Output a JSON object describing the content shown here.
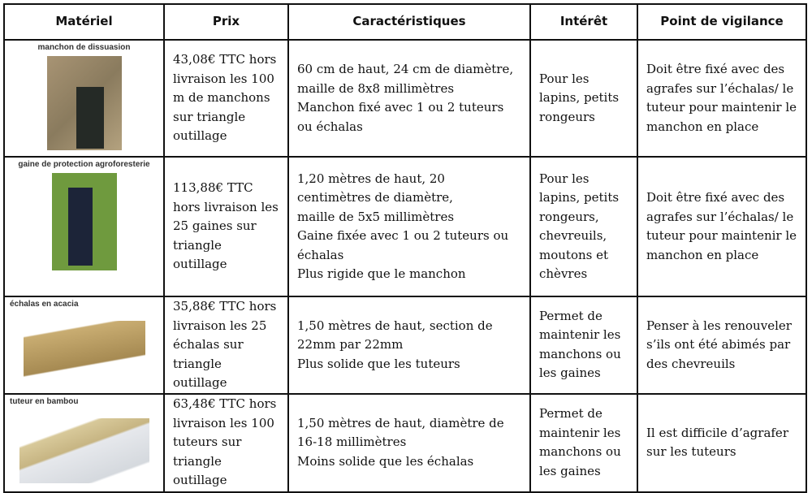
{
  "headers": [
    "Matériel",
    "Prix",
    "Caractéristiques",
    "Intérêt",
    "Point de vigilance"
  ],
  "rows": [
    {
      "materiel": "manchon de dissuasion",
      "prix": "43,08€ TTC hors livraison les 100 m de manchons sur triangle outillage",
      "caracteristiques": [
        "60 cm de haut, 24 cm de diamètre, maille de 8x8 millimètres",
        "Manchon fixé avec 1 ou 2 tuteurs ou échalas"
      ],
      "interet": "Pour les lapins, petits rongeurs",
      "vigilance": "Doit être fixé avec des agrafes sur l’échalas/ le tuteur pour maintenir le manchon en place"
    },
    {
      "materiel": "gaine de protection agroforesterie",
      "prix": "113,88€ TTC hors livraison les 25 gaines sur triangle outillage",
      "caracteristiques": [
        "1,20 mètres de haut, 20 centimètres de diamètre,",
        "maille de 5x5 millimètres",
        "Gaine fixée avec 1 ou 2 tuteurs ou échalas",
        "Plus rigide que le manchon"
      ],
      "interet": "Pour les lapins, petits rongeurs, chevreuils, moutons et chèvres",
      "vigilance": "Doit être fixé avec des agrafes sur l’échalas/ le tuteur pour maintenir le manchon en place"
    },
    {
      "materiel": "échalas en acacia",
      "prix": "35,88€ TTC hors livraison les 25 échalas sur triangle outillage",
      "caracteristiques": [
        "1,50 mètres de haut, section de 22mm par 22mm",
        "Plus solide que les tuteurs"
      ],
      "interet": "Permet de maintenir les manchons ou les gaines",
      "vigilance": "Penser à les renouveler s’ils ont été abimés par des chevreuils"
    },
    {
      "materiel": "tuteur en bambou",
      "prix": "63,48€ TTC hors livraison les 100 tuteurs sur triangle outillage",
      "caracteristiques": [
        "1,50 mètres de haut, diamètre de 16-18 millimètres",
        "Moins solide que les échalas"
      ],
      "interet": "Permet de maintenir les manchons ou les gaines",
      "vigilance": "Il est difficile d’agrafer sur les tuteurs"
    }
  ]
}
